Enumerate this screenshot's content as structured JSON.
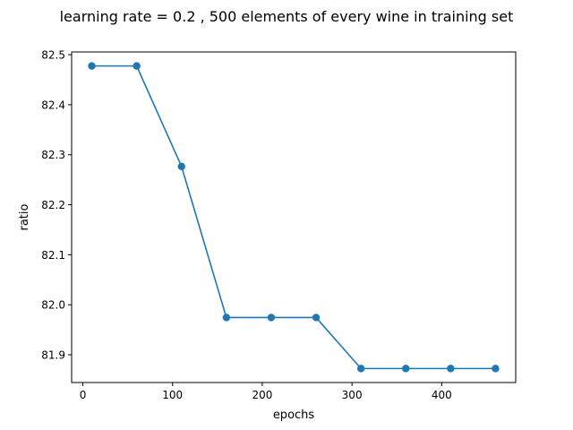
{
  "chart_data": {
    "type": "line",
    "title": "learning rate = 0.2 , 500 elements of every wine in training set",
    "xlabel": "epochs",
    "ylabel": "ratio",
    "xlim": [
      -12.5,
      482.5
    ],
    "ylim": [
      81.8445,
      82.5055
    ],
    "xticks": [
      0,
      100,
      200,
      300,
      400
    ],
    "xtick_labels": [
      "0",
      "100",
      "200",
      "300",
      "400"
    ],
    "yticks": [
      81.9,
      82.0,
      82.1,
      82.2,
      82.3,
      82.4,
      82.5
    ],
    "ytick_labels": [
      "81.9",
      "82.0",
      "82.1",
      "82.2",
      "82.3",
      "82.4",
      "82.5"
    ],
    "grid": false,
    "legend": "none",
    "series": [
      {
        "color": "#1f77b4",
        "x": [
          10,
          60,
          110,
          160,
          210,
          260,
          310,
          360,
          410,
          460
        ],
        "y": [
          82.4775,
          82.4775,
          82.2765,
          81.9745,
          81.9745,
          81.9745,
          81.8725,
          81.8725,
          81.8725,
          81.8725
        ]
      }
    ]
  }
}
